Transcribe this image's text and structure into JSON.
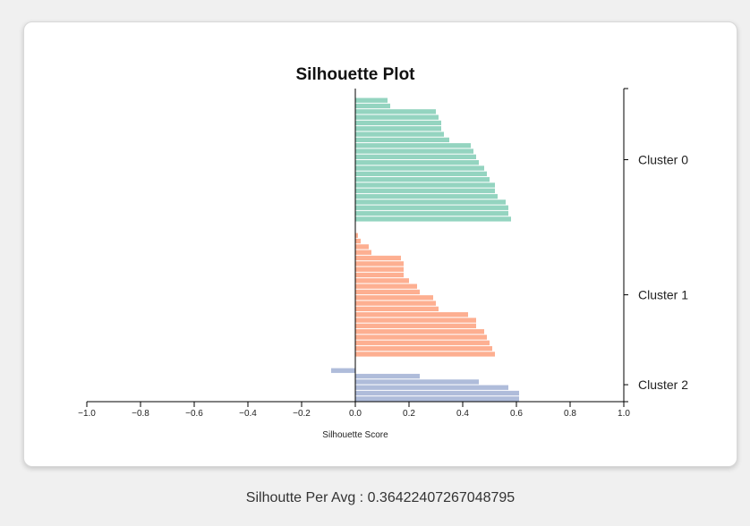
{
  "footer": {
    "label": "Silhoutte Per Avg : ",
    "value": "0.36422407267048795"
  },
  "chart_data": {
    "type": "bar",
    "orientation": "horizontal",
    "title": "Silhouette Plot",
    "xlabel": "Silhouette Score",
    "ylabel": "",
    "xlim": [
      -1.0,
      1.0
    ],
    "xticks": [
      "−1.0",
      "−0.8",
      "−0.6",
      "−0.4",
      "−0.2",
      "0.0",
      "0.2",
      "0.4",
      "0.6",
      "0.8",
      "1.0"
    ],
    "xtick_values": [
      -1.0,
      -0.8,
      -0.6,
      -0.4,
      -0.2,
      0.0,
      0.2,
      0.4,
      0.6,
      0.8,
      1.0
    ],
    "series": [
      {
        "label": "Cluster 0",
        "color": "#66c2a5",
        "values": [
          0.12,
          0.13,
          0.3,
          0.31,
          0.32,
          0.32,
          0.33,
          0.35,
          0.43,
          0.44,
          0.45,
          0.46,
          0.48,
          0.49,
          0.5,
          0.52,
          0.52,
          0.53,
          0.56,
          0.57,
          0.57,
          0.58
        ]
      },
      {
        "label": "Cluster 1",
        "color": "#fc8d62",
        "values": [
          0.01,
          0.02,
          0.05,
          0.06,
          0.17,
          0.18,
          0.18,
          0.18,
          0.2,
          0.23,
          0.24,
          0.29,
          0.3,
          0.31,
          0.42,
          0.45,
          0.45,
          0.48,
          0.49,
          0.5,
          0.51,
          0.52
        ]
      },
      {
        "label": "Cluster 2",
        "color": "#8da0cb",
        "values": [
          -0.09,
          0.24,
          0.46,
          0.57,
          0.61,
          0.61
        ]
      }
    ]
  }
}
